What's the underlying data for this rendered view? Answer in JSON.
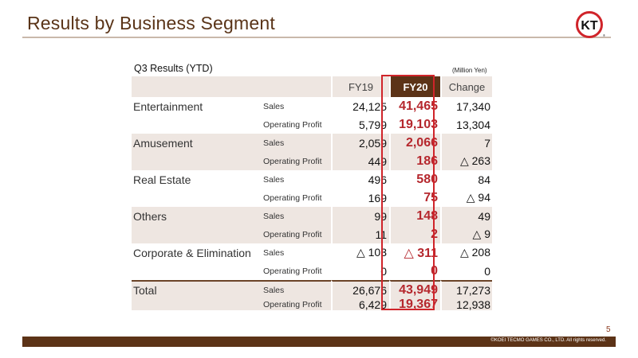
{
  "header": {
    "title": "Results by Business Segment",
    "logo_text": "KT"
  },
  "table_meta": {
    "section_label": "Q3 Results (YTD)",
    "unit": "(Million Yen)"
  },
  "columns": {
    "fy19": "FY19",
    "fy20": "FY20",
    "change": "Change"
  },
  "rows": [
    {
      "segment": "Entertainment",
      "metric": "Sales",
      "fy19": "24,125",
      "fy20": "41,465",
      "change": "17,340"
    },
    {
      "segment": "",
      "metric": "Operating Profit",
      "fy19": "5,799",
      "fy20": "19,103",
      "change": "13,304"
    },
    {
      "segment": "Amusement",
      "metric": "Sales",
      "fy19": "2,059",
      "fy20": "2,066",
      "change": "7"
    },
    {
      "segment": "",
      "metric": "Operating Profit",
      "fy19": "449",
      "fy20": "186",
      "change": "△ 263"
    },
    {
      "segment": "Real Estate",
      "metric": "Sales",
      "fy19": "496",
      "fy20": "580",
      "change": "84"
    },
    {
      "segment": "",
      "metric": "Operating Profit",
      "fy19": "169",
      "fy20": "75",
      "change": "△ 94"
    },
    {
      "segment": "Others",
      "metric": "Sales",
      "fy19": "99",
      "fy20": "148",
      "change": "49"
    },
    {
      "segment": "",
      "metric": "Operating Profit",
      "fy19": "11",
      "fy20": "2",
      "change": "△ 9"
    },
    {
      "segment": "Corporate & Elimination",
      "metric": "Sales",
      "fy19": "△ 103",
      "fy20": "△ 311",
      "change": "△ 208"
    },
    {
      "segment": "",
      "metric": "Operating Profit",
      "fy19": "0",
      "fy20": "0",
      "change": "0"
    },
    {
      "segment": "Total",
      "metric": "Sales",
      "fy19": "26,676",
      "fy20": "43,949",
      "change": "17,273"
    },
    {
      "segment": "",
      "metric": "Operating Profit",
      "fy19": "6,429",
      "fy20": "19,367",
      "change": "12,938"
    }
  ],
  "footer": {
    "page_number": "5",
    "copyright": "©KOEI TECMO GAMES CO., LTD. All rights reserved."
  },
  "colors": {
    "brand_brown": "#5c3317",
    "highlight_red": "#b5272d",
    "frame_red": "#d0242a",
    "shade": "#eee6e1"
  }
}
